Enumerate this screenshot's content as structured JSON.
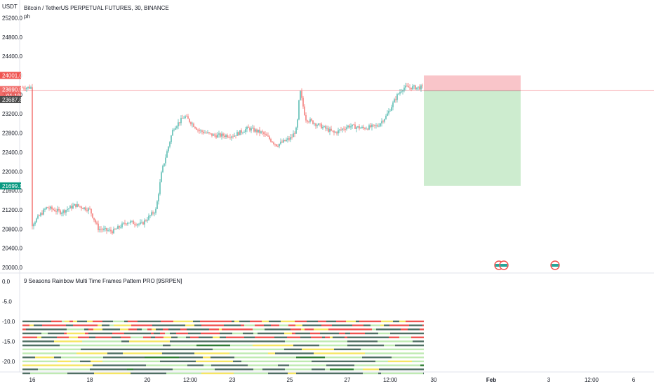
{
  "header": {
    "axis_unit": "USDT",
    "symbol_title": "Bitcoin / TetherUS PERPETUAL FUTURES, 30, BINANCE",
    "study_label": "ph"
  },
  "colors": {
    "up_candle": "#26a69a",
    "down_candle": "#ef5350",
    "stop_zone": "#f9c5c9",
    "target_zone": "#cdeccf",
    "price_tag": "#ef5350",
    "entry_tag": "#4a4a4a",
    "target_tag": "#089981",
    "current_line": "#f7a8ae"
  },
  "chart_data": [
    {
      "type": "line",
      "title": "Bitcoin / TetherUS PERPETUAL FUTURES, 30, BINANCE",
      "ylabel": "USDT",
      "ylim": [
        20000,
        25300
      ],
      "x_ticks": [
        "16",
        "18",
        "20",
        "12:00",
        "23",
        "25",
        "27",
        "12:00",
        "30",
        "Feb",
        "3",
        "12:00",
        "6"
      ],
      "y_ticks": [
        20000.0,
        20400.0,
        20800.0,
        21200.0,
        21600.0,
        22000.0,
        22400.0,
        22800.0,
        23200.0,
        23600.0,
        24000.0,
        24400.0,
        24800.0,
        25200.0
      ],
      "y_tick_labels": [
        "20000.0",
        "20400.0",
        "20800.0",
        "21200.0",
        "21600.0",
        "22000.0",
        "22400.0",
        "22800.0",
        "23200.0",
        "23600.0",
        "24000.0",
        "24400.0",
        "24800.0",
        "25200.0"
      ],
      "price_path": [
        {
          "x": "16",
          "y": 20900
        },
        {
          "x": "16.5",
          "y": 21250
        },
        {
          "x": "17",
          "y": 21150
        },
        {
          "x": "17.5",
          "y": 21300
        },
        {
          "x": "18",
          "y": 21200
        },
        {
          "x": "18.3",
          "y": 20800
        },
        {
          "x": "18.8",
          "y": 20750
        },
        {
          "x": "19.3",
          "y": 20950
        },
        {
          "x": "19.8",
          "y": 20900
        },
        {
          "x": "20.3",
          "y": 21200
        },
        {
          "x": "20.5",
          "y": 22000
        },
        {
          "x": "20.9",
          "y": 22900
        },
        {
          "x": "21.3",
          "y": 23150
        },
        {
          "x": "21.8",
          "y": 22850
        },
        {
          "x": "22.3",
          "y": 22750
        },
        {
          "x": "23",
          "y": 22750
        },
        {
          "x": "23.5",
          "y": 22900
        },
        {
          "x": "24",
          "y": 22800
        },
        {
          "x": "24.5",
          "y": 22550
        },
        {
          "x": "25",
          "y": 22700
        },
        {
          "x": "25.2",
          "y": 22900
        },
        {
          "x": "25.3",
          "y": 23700
        },
        {
          "x": "25.5",
          "y": 23100
        },
        {
          "x": "26",
          "y": 22950
        },
        {
          "x": "26.5",
          "y": 22800
        },
        {
          "x": "27",
          "y": 22950
        },
        {
          "x": "27.5",
          "y": 22900
        },
        {
          "x": "28",
          "y": 22950
        },
        {
          "x": "28.3",
          "y": 23150
        },
        {
          "x": "28.7",
          "y": 23600
        },
        {
          "x": "28.9",
          "y": 23750
        }
      ],
      "price_tags": [
        {
          "label": "24001.0",
          "value": 24001.0
        },
        {
          "label": "23690.9",
          "value": 23690.9
        },
        {
          "label": "01:19",
          "value": 23690.9
        },
        {
          "label": "23687.8",
          "value": 23687.8
        },
        {
          "label": "21699.1",
          "value": 21699.1
        }
      ],
      "position_tool": {
        "stop": 24001.0,
        "entry": 23687.8,
        "target": 21699.1,
        "direction": "short"
      },
      "events": [
        "earnings-badge",
        "earnings-badge",
        "dividend-badge"
      ]
    },
    {
      "type": "heatmap",
      "title": "9 Seasons Rainbow Multi Time Frames Pattern PRO [9SRPEN]",
      "ylim": [
        -23.5,
        0.5
      ],
      "y_ticks": [
        0.0,
        -5.0,
        -10.0,
        -15.0,
        -20.0
      ],
      "y_tick_labels": [
        "0.0",
        "-5.0",
        "-10.0",
        "-15.0",
        "-20.0"
      ],
      "rows": [
        -10,
        -11,
        -12,
        -13,
        -14,
        -15,
        -16,
        -17,
        -18,
        -19,
        -20,
        -21,
        -22,
        -23
      ],
      "legend_colors": [
        "#ef5350",
        "#4f6f62",
        "#f5e663",
        "#bfeab2",
        "#2e7d32"
      ]
    }
  ]
}
